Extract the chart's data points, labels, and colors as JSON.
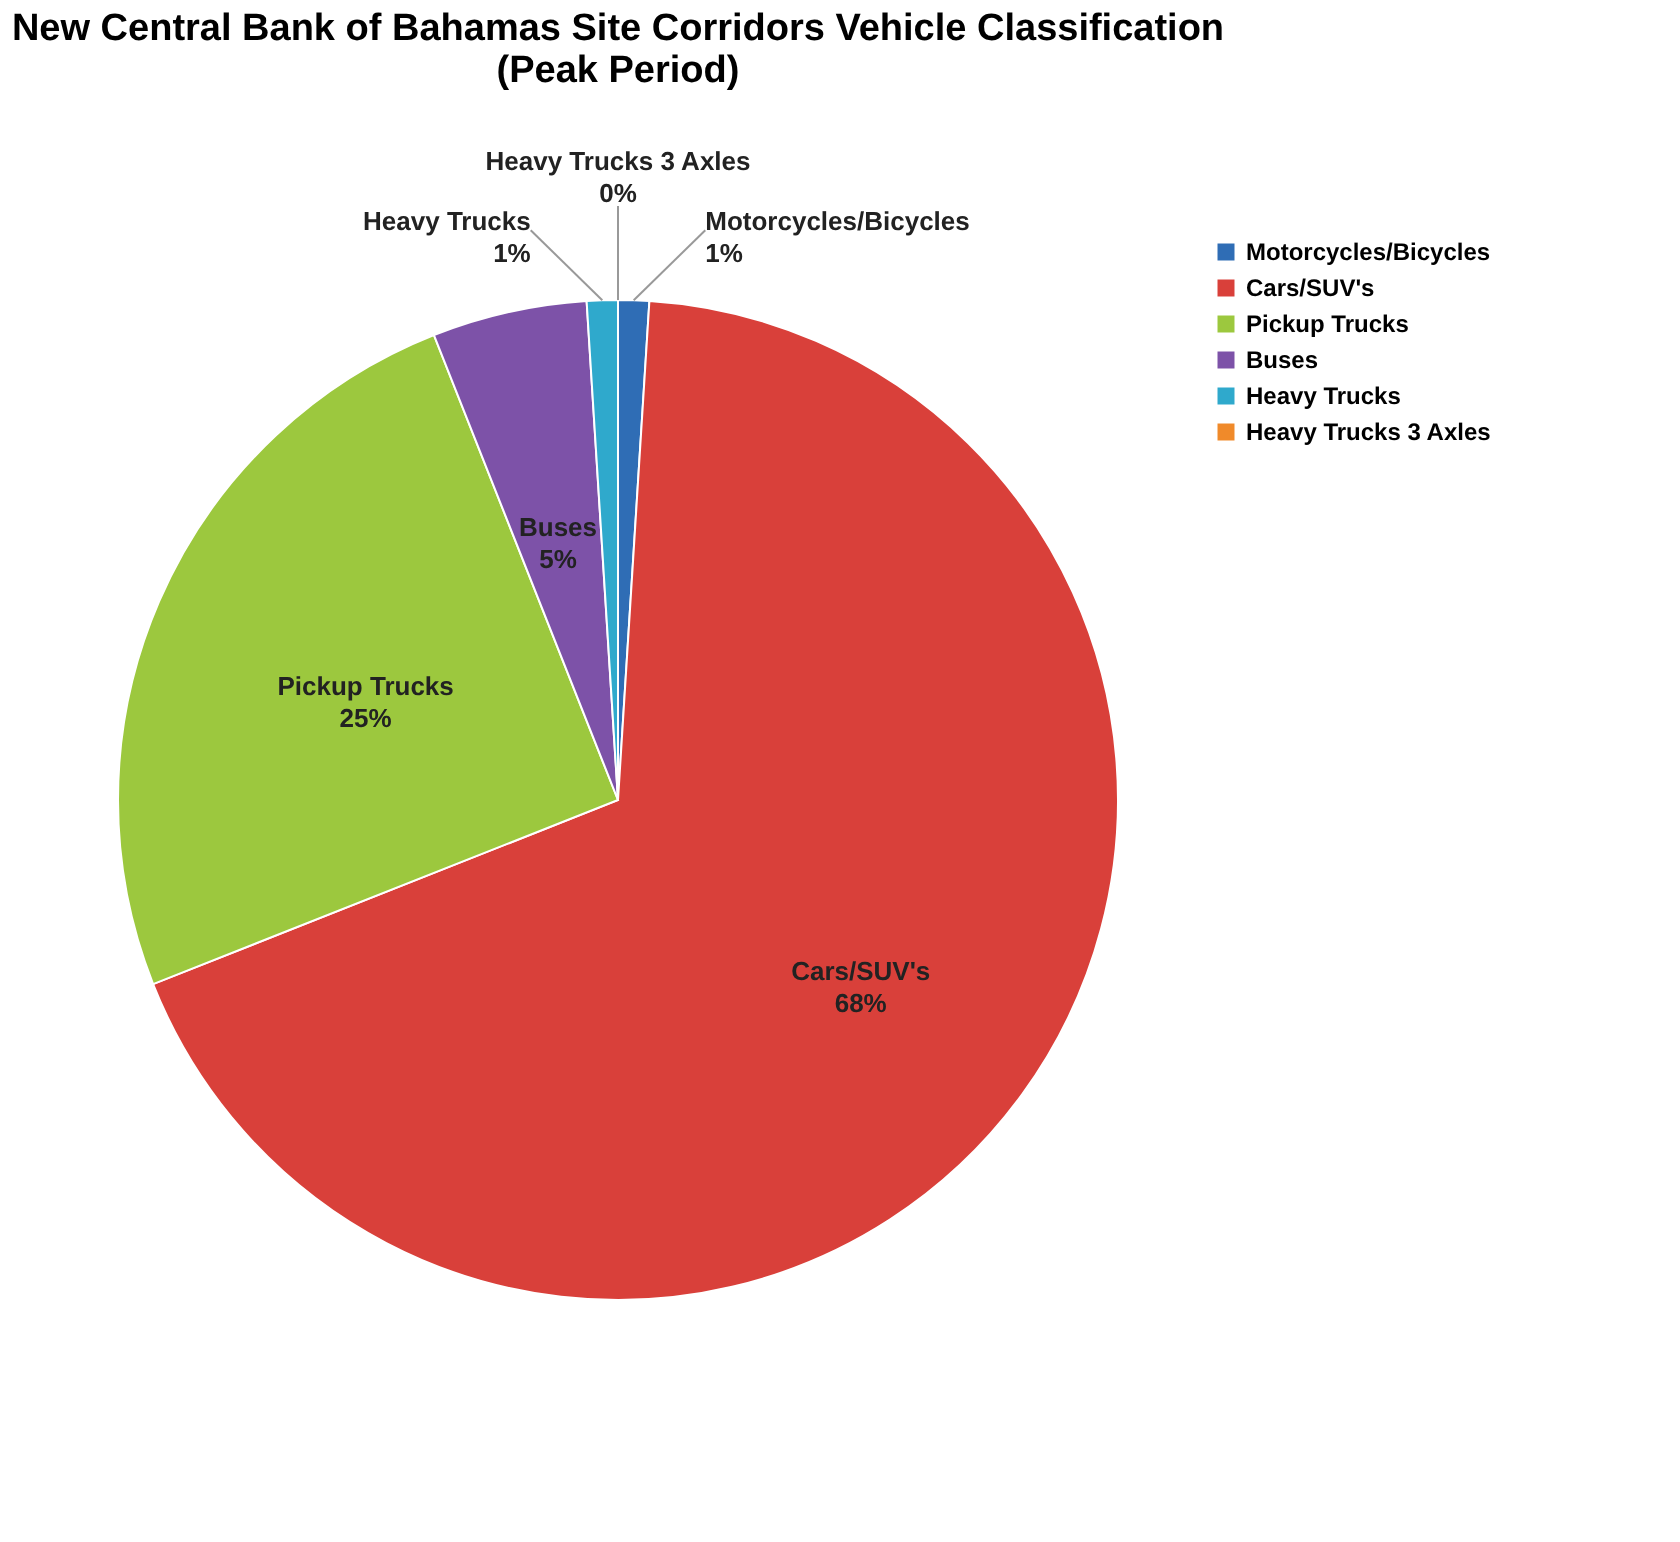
{
  "chart_data": {
    "type": "pie",
    "title": "New Central Bank of Bahamas Site Corridors Vehicle Classification\n(Peak Period)",
    "categories": [
      "Motorcycles/Bicycles",
      "Cars/SUV's",
      "Pickup Trucks",
      "Buses",
      "Heavy Trucks",
      "Heavy Trucks 3 Axles"
    ],
    "values": [
      1,
      68,
      25,
      5,
      1,
      0
    ],
    "value_labels": [
      "1%",
      "68%",
      "25%",
      "5%",
      "1%",
      "0%"
    ],
    "colors": [
      "#2f6db5",
      "#d9403a",
      "#9cc83e",
      "#7d52a8",
      "#2fa9cc",
      "#f08a2a"
    ],
    "legend": "right"
  }
}
